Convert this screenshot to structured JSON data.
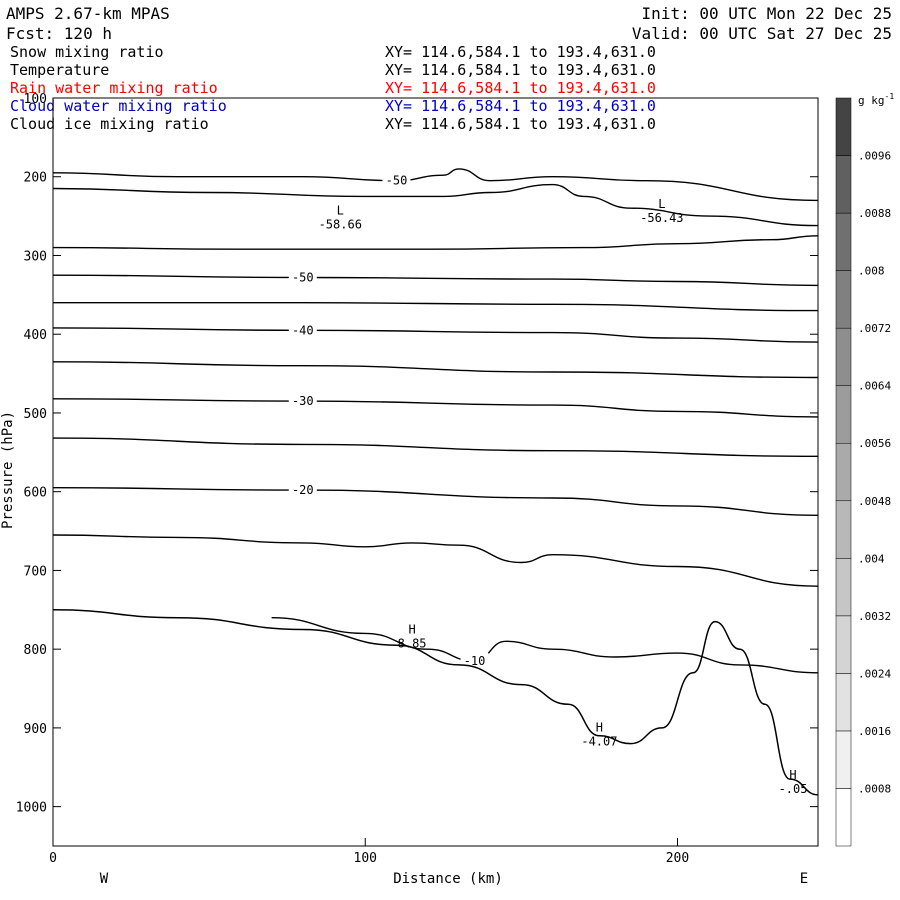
{
  "header": {
    "model_title": "AMPS 2.67-km MPAS",
    "forecast": "Fcst: 120 h",
    "init_time": "Init: 00 UTC Mon 22 Dec 25",
    "valid_time": "Valid: 00 UTC Sat 27 Dec 25"
  },
  "fields": [
    {
      "name": "Snow mixing ratio",
      "xy": "XY= 114.6,584.1 to 193.4,631.0",
      "color": "#000000"
    },
    {
      "name": "Temperature",
      "xy": "XY= 114.6,584.1 to 193.4,631.0",
      "color": "#000000"
    },
    {
      "name": "Rain water mixing ratio",
      "xy": "XY= 114.6,584.1 to 193.4,631.0",
      "color": "#ff0000"
    },
    {
      "name": "Cloud water mixing ratio",
      "xy": "XY= 114.6,584.1 to 193.4,631.0",
      "color": "#0000cc"
    },
    {
      "name": "Cloud ice mixing ratio",
      "xy": "XY= 114.6,584.1 to 193.4,631.0",
      "color": "#000000"
    }
  ],
  "chart_data": {
    "type": "contour-cross-section",
    "xlabel": "Distance (km)",
    "ylabel": "Pressure (hPa)",
    "xlim": [
      0,
      245
    ],
    "ylim": [
      1050,
      100
    ],
    "y_scale": "linear",
    "x_ticks": [
      0,
      100,
      200
    ],
    "y_ticks": [
      100,
      200,
      300,
      400,
      500,
      600,
      700,
      800,
      900,
      1000
    ],
    "x_end_labels": {
      "left": "W",
      "right": "E"
    },
    "isotherms": [
      {
        "label": "-50",
        "x": [
          0,
          40,
          80,
          110,
          125,
          130,
          140,
          160,
          190,
          245
        ],
        "p": [
          195,
          200,
          200,
          205,
          198,
          190,
          205,
          200,
          205,
          230
        ]
      },
      {
        "label": "",
        "x": [
          0,
          50,
          100,
          125,
          140,
          160,
          170,
          185,
          210,
          245
        ],
        "p": [
          215,
          220,
          225,
          225,
          220,
          210,
          225,
          240,
          250,
          262
        ]
      },
      {
        "label": "",
        "x": [
          0,
          60,
          120,
          170,
          200,
          230,
          245
        ],
        "p": [
          290,
          292,
          292,
          290,
          285,
          280,
          275
        ]
      },
      {
        "label": "-50",
        "x": [
          0,
          80,
          160,
          200,
          245
        ],
        "p": [
          325,
          328,
          330,
          333,
          338
        ]
      },
      {
        "label": "",
        "x": [
          0,
          80,
          160,
          245
        ],
        "p": [
          360,
          360,
          362,
          370
        ]
      },
      {
        "label": "-40",
        "x": [
          0,
          80,
          160,
          200,
          245
        ],
        "p": [
          392,
          395,
          398,
          405,
          410
        ]
      },
      {
        "label": "",
        "x": [
          0,
          80,
          160,
          245
        ],
        "p": [
          435,
          440,
          448,
          455
        ]
      },
      {
        "label": "-30",
        "x": [
          0,
          80,
          160,
          200,
          245
        ],
        "p": [
          482,
          485,
          490,
          498,
          505
        ]
      },
      {
        "label": "",
        "x": [
          0,
          80,
          160,
          245
        ],
        "p": [
          532,
          540,
          548,
          555
        ]
      },
      {
        "label": "-20",
        "x": [
          0,
          80,
          160,
          200,
          245
        ],
        "p": [
          595,
          598,
          608,
          618,
          630
        ]
      },
      {
        "label": "",
        "x": [
          0,
          40,
          80,
          100,
          115,
          130,
          150,
          160,
          200,
          245
        ],
        "p": [
          655,
          658,
          665,
          670,
          665,
          668,
          690,
          680,
          695,
          720
        ]
      },
      {
        "label": "-10",
        "x": [
          70,
          100,
          120,
          135,
          145,
          160,
          180,
          200,
          220,
          245
        ],
        "p": [
          760,
          780,
          800,
          815,
          790,
          800,
          810,
          805,
          820,
          830
        ]
      }
    ],
    "terrain": {
      "x": [
        0,
        40,
        80,
        110,
        130,
        150,
        165,
        175,
        185,
        195,
        205,
        212,
        220,
        228,
        236,
        245
      ],
      "p": [
        750,
        760,
        775,
        795,
        820,
        845,
        870,
        910,
        920,
        900,
        830,
        765,
        800,
        870,
        965,
        985
      ]
    },
    "extrema": [
      {
        "type": "L",
        "value": "-58.66",
        "x": 92,
        "p": 258
      },
      {
        "type": "L",
        "value": "-56.43",
        "x": 195,
        "p": 250
      },
      {
        "type": "H",
        "value": "8.85",
        "x": 115,
        "p": 790
      },
      {
        "type": "H",
        "value": "-4.07",
        "x": 175,
        "p": 915
      },
      {
        "type": "H",
        "value": "-.05",
        "x": 237,
        "p": 975
      }
    ],
    "colorbar": {
      "unit": "g kg",
      "unit_exponent": "-1",
      "levels": [
        ".0008",
        ".0016",
        ".0024",
        ".0032",
        ".004",
        ".0048",
        ".0056",
        ".0064",
        ".0072",
        ".008",
        ".0088",
        ".0096"
      ],
      "colors": [
        "#ffffff",
        "#f0f0f0",
        "#e2e2e2",
        "#d4d4d4",
        "#c6c6c6",
        "#b8b8b8",
        "#aaaaaa",
        "#9c9c9c",
        "#8e8e8e",
        "#808080",
        "#707070",
        "#606060",
        "#444444"
      ]
    }
  }
}
